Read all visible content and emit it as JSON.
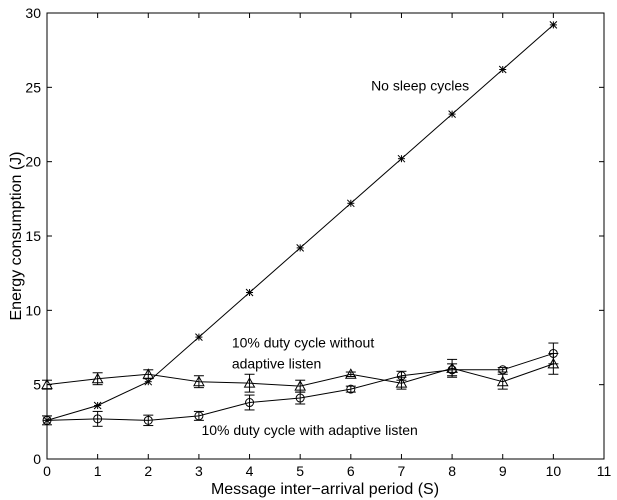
{
  "chart_data": {
    "type": "line",
    "xlabel": "Message inter−arrival period (S)",
    "ylabel": "Energy consumption (J)",
    "xlim": [
      0,
      11
    ],
    "ylim": [
      0,
      30
    ],
    "x_ticks": [
      "0",
      "1",
      "2",
      "3",
      "4",
      "5",
      "6",
      "7",
      "8",
      "9",
      "10",
      "11"
    ],
    "y_ticks": [
      "0",
      "5",
      "10",
      "15",
      "20",
      "25",
      "30"
    ],
    "grid": false,
    "series": [
      {
        "marker": "star",
        "x": [
          0,
          1,
          2,
          3,
          4,
          5,
          6,
          7,
          8,
          9,
          10
        ],
        "y": [
          2.6,
          3.6,
          5.2,
          8.2,
          11.2,
          14.2,
          17.2,
          20.2,
          23.2,
          26.2,
          29.2
        ],
        "err": [
          0,
          0,
          0,
          0,
          0,
          0,
          0,
          0,
          0,
          0,
          0
        ]
      },
      {
        "marker": "triangle",
        "x": [
          0,
          1,
          2,
          3,
          4,
          5,
          6,
          7,
          8,
          9,
          10
        ],
        "y": [
          5.0,
          5.4,
          5.7,
          5.2,
          5.1,
          4.9,
          5.7,
          5.1,
          6.1,
          5.2,
          6.4
        ],
        "err": [
          0.3,
          0.4,
          0.3,
          0.4,
          0.6,
          0.4,
          0.15,
          0.4,
          0.6,
          0.5,
          0.7
        ]
      },
      {
        "marker": "circle",
        "x": [
          0,
          1,
          2,
          3,
          4,
          5,
          6,
          7,
          8,
          9,
          10
        ],
        "y": [
          2.6,
          2.7,
          2.6,
          2.9,
          3.8,
          4.1,
          4.7,
          5.6,
          6.0,
          6.0,
          7.1
        ],
        "err": [
          0.3,
          0.5,
          0.35,
          0.3,
          0.5,
          0.4,
          0.2,
          0.3,
          0.4,
          0.15,
          0.7
        ]
      }
    ],
    "annotations": [
      {
        "text": "No sleep cycles",
        "x": 6.4,
        "y": 24.8
      },
      {
        "text": "10% duty cycle without",
        "x": 3.65,
        "y": 7.5
      },
      {
        "text": "adaptive listen",
        "x": 3.65,
        "y": 6.1
      },
      {
        "text": "10% duty cycle with adaptive listen",
        "x": 3.05,
        "y": 1.6
      }
    ]
  }
}
